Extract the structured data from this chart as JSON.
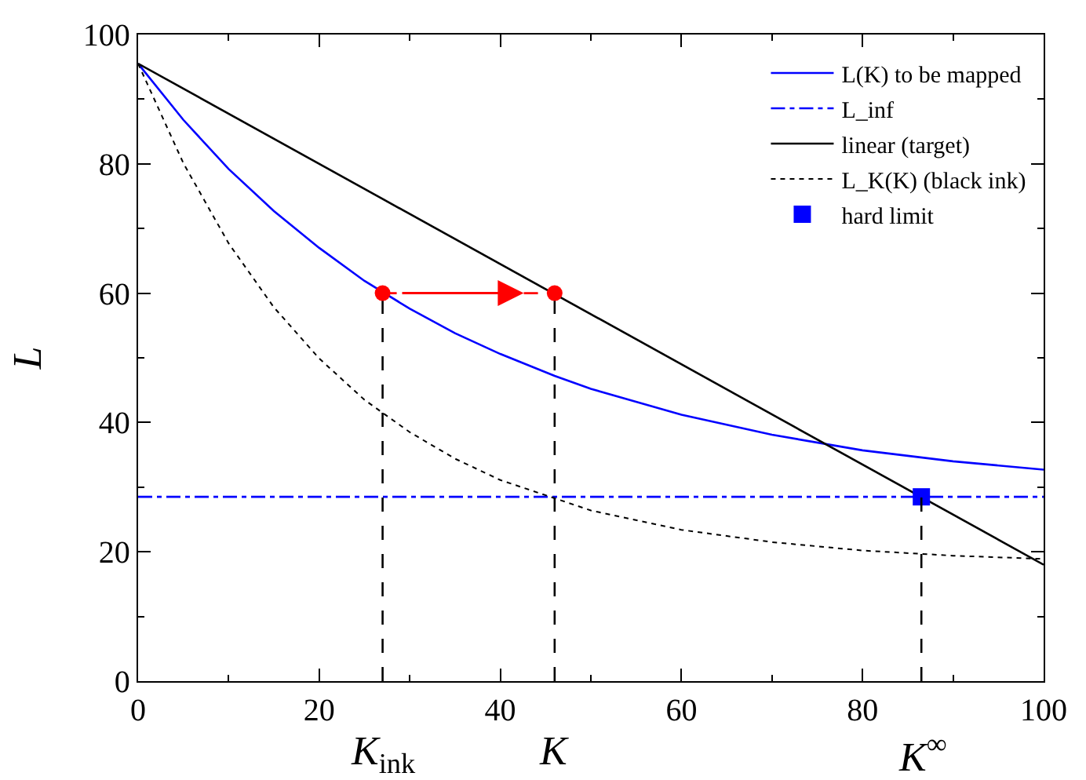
{
  "chart_data": {
    "type": "line",
    "ylabel": "L",
    "xlim": [
      0,
      100
    ],
    "ylim": [
      0,
      100
    ],
    "xticks": [
      0,
      20,
      40,
      60,
      80,
      100
    ],
    "yticks": [
      0,
      20,
      40,
      60,
      80,
      100
    ],
    "legend": "top right",
    "series": [
      {
        "name": "L(K) to be mapped",
        "color": "#0000ff",
        "line_style": "solid",
        "x": [
          0,
          5,
          10,
          15,
          20,
          25,
          30,
          35,
          40,
          46,
          50,
          60,
          70,
          80,
          90,
          100
        ],
        "values": [
          95.5,
          86.8,
          79.2,
          72.7,
          67.0,
          61.9,
          57.6,
          53.8,
          50.6,
          47.2,
          45.2,
          41.2,
          38.1,
          35.7,
          34.0,
          32.7
        ]
      },
      {
        "name": "L_inf",
        "color": "#0000ff",
        "line_style": "dashdot",
        "x": [
          0,
          100
        ],
        "values": [
          28.5,
          28.5
        ]
      },
      {
        "name": "linear (target)",
        "color": "#000000",
        "line_style": "solid",
        "x": [
          0,
          100
        ],
        "values": [
          95.5,
          18
        ]
      },
      {
        "name": "L_K(K) (black ink)",
        "color": "#000000",
        "line_style": "dotted",
        "x": [
          0,
          5,
          10,
          15,
          20,
          25,
          30,
          35,
          40,
          50,
          60,
          70,
          80,
          90,
          100
        ],
        "values": [
          95.5,
          80.1,
          67.7,
          57.8,
          49.9,
          43.5,
          38.5,
          34.4,
          31.1,
          26.4,
          23.4,
          21.5,
          20.2,
          19.4,
          18.9
        ]
      },
      {
        "name": "hard limit",
        "type": "scatter",
        "marker": "square",
        "color": "#0000ff",
        "x": [
          86.5
        ],
        "values": [
          28.5
        ]
      },
      {
        "color": "#000000",
        "line_style": "dashed",
        "x": [
          27,
          27
        ],
        "values": [
          0,
          60
        ]
      },
      {
        "color": "#000000",
        "line_style": "dashed",
        "x": [
          46,
          46
        ],
        "values": [
          0,
          60
        ]
      },
      {
        "color": "#000000",
        "line_style": "dashed",
        "x": [
          86.5,
          86.5
        ],
        "values": [
          0,
          28.5
        ]
      },
      {
        "color": "#ff0000",
        "line_style": "dashed",
        "marker": "circle",
        "x": [
          27,
          46
        ],
        "values": [
          60,
          60
        ]
      }
    ],
    "annotations": [
      "K$_{ink}$",
      "K",
      "K$^{∞}$"
    ]
  }
}
